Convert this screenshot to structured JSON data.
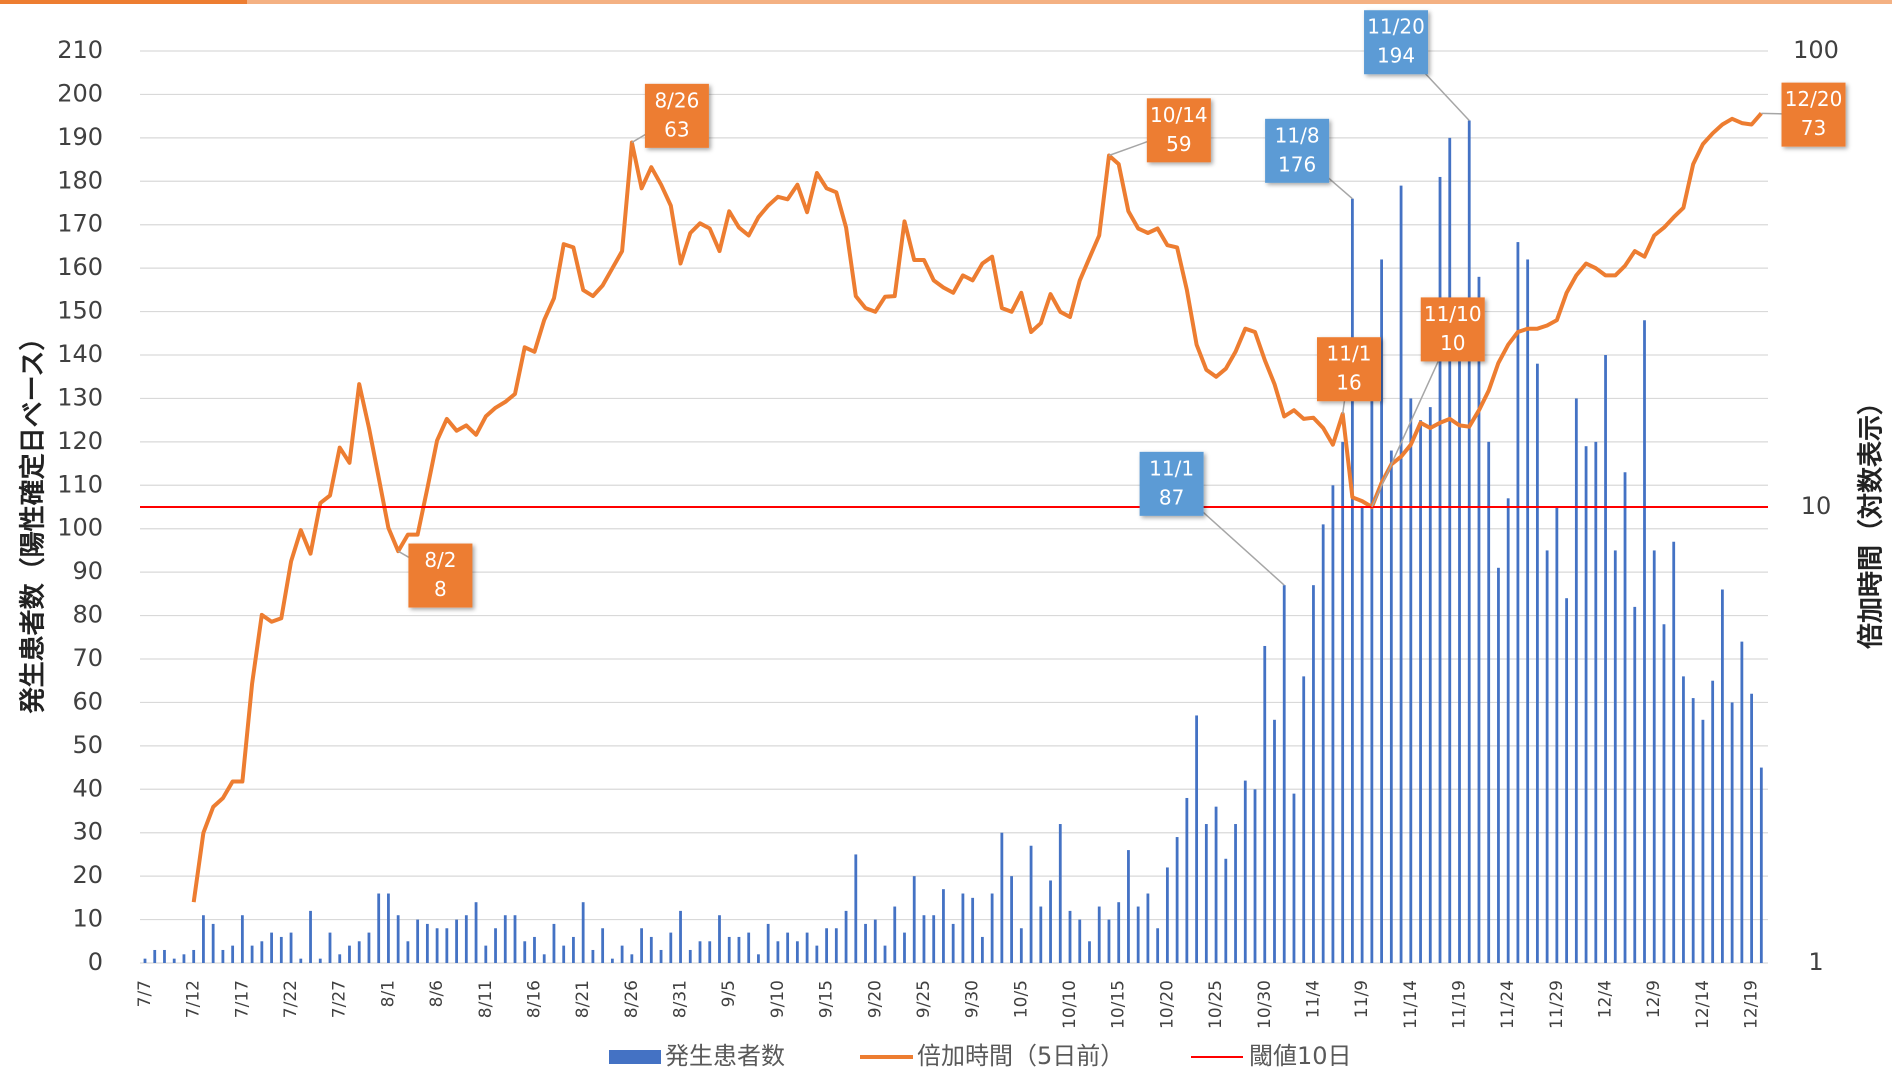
{
  "chart_data": {
    "type": "bar_line",
    "y_label": "発生患者数（陽性確定日ベース）",
    "y2_label": "倍加時間（対数表示）",
    "categories": [
      "7/7",
      null,
      null,
      null,
      null,
      "7/12",
      null,
      null,
      null,
      null,
      "7/17",
      null,
      null,
      null,
      null,
      "7/22",
      null,
      null,
      null,
      null,
      "7/27",
      null,
      null,
      null,
      null,
      "8/1",
      null,
      null,
      null,
      null,
      "8/6",
      null,
      null,
      null,
      null,
      "8/11",
      null,
      null,
      null,
      null,
      "8/16",
      null,
      null,
      null,
      null,
      "8/21",
      null,
      null,
      null,
      null,
      "8/26",
      null,
      null,
      null,
      null,
      "8/31",
      null,
      null,
      null,
      null,
      "9/5",
      null,
      null,
      null,
      null,
      "9/10",
      null,
      null,
      null,
      null,
      "9/15",
      null,
      null,
      null,
      null,
      "9/20",
      null,
      null,
      null,
      null,
      "9/25",
      null,
      null,
      null,
      null,
      "9/30",
      null,
      null,
      null,
      null,
      "10/5",
      null,
      null,
      null,
      null,
      "10/10",
      null,
      null,
      null,
      null,
      "10/15",
      null,
      null,
      null,
      null,
      "10/20",
      null,
      null,
      null,
      null,
      "10/25",
      null,
      null,
      null,
      null,
      "10/30",
      null,
      null,
      null,
      null,
      "11/4",
      null,
      null,
      null,
      null,
      "11/9",
      null,
      null,
      null,
      null,
      "11/14",
      null,
      null,
      null,
      null,
      "11/19",
      null,
      null,
      null,
      null,
      "11/24",
      null,
      null,
      null,
      null,
      "11/29",
      null,
      null,
      null,
      null,
      "12/4",
      null,
      null,
      null,
      null,
      "12/9",
      null,
      null,
      null,
      null,
      "12/14",
      null,
      null,
      null,
      null,
      "12/19",
      null
    ],
    "series": [
      {
        "name": "発生患者数",
        "type": "bar",
        "color": "#4472c4",
        "values": [
          1,
          3,
          3,
          1,
          2,
          3,
          11,
          9,
          3,
          4,
          11,
          4,
          5,
          7,
          6,
          7,
          1,
          12,
          1,
          7,
          2,
          4,
          5,
          7,
          16,
          16,
          11,
          5,
          10,
          9,
          8,
          8,
          10,
          11,
          14,
          4,
          8,
          11,
          11,
          5,
          6,
          2,
          9,
          4,
          6,
          14,
          3,
          8,
          1,
          4,
          2,
          8,
          6,
          3,
          7,
          12,
          3,
          5,
          5,
          11,
          6,
          6,
          7,
          2,
          9,
          5,
          7,
          5,
          7,
          4,
          8,
          8,
          12,
          25,
          9,
          10,
          4,
          13,
          7,
          20,
          11,
          11,
          17,
          9,
          16,
          15,
          6,
          16,
          30,
          20,
          8,
          27,
          13,
          19,
          32,
          12,
          10,
          5,
          13,
          10,
          14,
          26,
          13,
          16,
          8,
          22,
          29,
          38,
          57,
          32,
          36,
          24,
          32,
          42,
          40,
          73,
          56,
          87,
          39,
          66,
          87,
          101,
          110,
          120,
          176,
          105,
          130,
          162,
          118,
          179,
          130,
          125,
          128,
          181,
          190,
          140,
          194,
          158,
          120,
          91,
          107,
          166,
          162,
          138,
          95,
          105,
          84,
          130,
          119,
          120,
          140,
          95,
          113,
          82,
          148,
          95,
          78,
          97,
          66,
          61,
          56,
          65,
          86,
          60,
          74,
          62,
          45
        ]
      },
      {
        "name": "倍加時間（5日前）",
        "type": "line",
        "axis": "y2",
        "color": "#ed7d31",
        "values": [
          null,
          null,
          null,
          null,
          null,
          1.36,
          1.93,
          2.2,
          2.3,
          2.5,
          2.5,
          4.1,
          5.8,
          5.6,
          5.7,
          7.6,
          8.9,
          7.9,
          10.2,
          10.6,
          13.5,
          12.5,
          18.6,
          14.9,
          11.6,
          9,
          8,
          8.7,
          8.7,
          11,
          14,
          15.6,
          14.7,
          15.1,
          14.4,
          15.8,
          16.5,
          17,
          17.7,
          22.4,
          21.9,
          25.7,
          28.7,
          37.7,
          37.1,
          29.9,
          29,
          30.6,
          33.4,
          36.4,
          63,
          50,
          55.6,
          50.9,
          45.8,
          34.2,
          39.9,
          41.9,
          40.8,
          36.4,
          44.5,
          41,
          39.4,
          43.2,
          45.8,
          47.9,
          47.3,
          50.9,
          44.3,
          54,
          50,
          49,
          41,
          29,
          27.3,
          26.8,
          28.9,
          29,
          42.3,
          34.8,
          34.8,
          31.4,
          30.3,
          29.5,
          32.2,
          31.4,
          34.2,
          35.4,
          27.3,
          26.8,
          29.5,
          24.2,
          25.3,
          29.3,
          26.8,
          26.1,
          31.4,
          35.2,
          39.4,
          59,
          56.5,
          44.5,
          40.8,
          39.9,
          40.8,
          37.5,
          37.1,
          29.9,
          22.7,
          20,
          19.3,
          20.1,
          21.9,
          24.6,
          24.2,
          21,
          18.6,
          15.8,
          16.3,
          15.6,
          15.7,
          14.9,
          13.7,
          16,
          10.5,
          10.3,
          10,
          11.3,
          12.4,
          12.9,
          13.7,
          15.3,
          14.9,
          15.3,
          15.6,
          15.1,
          15,
          16.3,
          18,
          20.7,
          22.7,
          24.2,
          24.6,
          24.6,
          25,
          25.7,
          29.5,
          32.2,
          34.2,
          33.4,
          32.2,
          32.2,
          33.8,
          36.4,
          35.4,
          39.4,
          41,
          43.2,
          45.3,
          56.5,
          62.5,
          66,
          69,
          71,
          69.5,
          69,
          73
        ]
      }
    ],
    "reference_line": {
      "name": "閾値10日",
      "value": 10,
      "axis": "y2",
      "color": "#ff0000"
    },
    "line_annotations": [
      {
        "label": "8/2",
        "value": 8
      },
      {
        "label": "8/26",
        "value": 63
      },
      {
        "label": "10/14",
        "value": 59
      },
      {
        "label": "11/1",
        "value": 16
      },
      {
        "label": "11/10",
        "value": 10
      },
      {
        "label": "12/20",
        "value": 73
      }
    ],
    "bar_annotations": [
      {
        "label": "11/1",
        "value": 87
      },
      {
        "label": "11/8",
        "value": 176
      },
      {
        "label": "11/20",
        "value": 194
      }
    ],
    "ylim": [
      0,
      210
    ],
    "yticks": [
      0,
      10,
      20,
      30,
      40,
      50,
      60,
      70,
      80,
      90,
      100,
      110,
      120,
      130,
      140,
      150,
      160,
      170,
      180,
      190,
      200,
      210
    ],
    "y2lim": [
      1,
      100
    ],
    "y2ticks": [
      1,
      10,
      100
    ],
    "y2_log": true,
    "grid": true
  }
}
